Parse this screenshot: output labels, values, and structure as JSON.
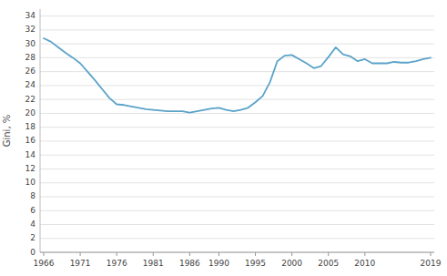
{
  "chart_data": {
    "type": "line",
    "ylabel": "Gini, %",
    "x": [
      1966,
      1967,
      1968,
      1969,
      1970,
      1971,
      1972,
      1973,
      1974,
      1975,
      1976,
      1977,
      1978,
      1979,
      1980,
      1981,
      1982,
      1983,
      1984,
      1985,
      1986,
      1987,
      1988,
      1989,
      1990,
      1991,
      1992,
      1993,
      1994,
      1995,
      1996,
      1997,
      1998,
      1999,
      2000,
      2001,
      2002,
      2003,
      2004,
      2005,
      2006,
      2007,
      2008,
      2009,
      2010,
      2011,
      2012,
      2013,
      2014,
      2015,
      2016,
      2017,
      2018,
      2019
    ],
    "values": [
      30.8,
      30.3,
      29.5,
      28.7,
      28.0,
      27.2,
      26.0,
      24.8,
      23.5,
      22.2,
      21.3,
      21.2,
      21.0,
      20.8,
      20.6,
      20.5,
      20.4,
      20.3,
      20.3,
      20.3,
      20.1,
      20.3,
      20.5,
      20.7,
      20.8,
      20.5,
      20.3,
      20.5,
      20.8,
      21.6,
      22.5,
      24.5,
      27.5,
      28.3,
      28.4,
      27.8,
      27.2,
      26.5,
      26.8,
      28.1,
      29.5,
      28.5,
      28.2,
      27.5,
      27.8,
      27.2,
      27.2,
      27.2,
      27.4,
      27.3,
      27.3,
      27.5,
      27.8,
      28.0
    ],
    "color": "#5ba3c9",
    "xlim": [
      1965.5,
      2019.5
    ],
    "ylim": [
      0,
      35
    ],
    "xticks": [
      1966,
      1971,
      1976,
      1981,
      1986,
      1990,
      1995,
      2000,
      2005,
      2010,
      2019
    ],
    "yticks": [
      0,
      2,
      4,
      6,
      8,
      10,
      12,
      14,
      16,
      18,
      20,
      22,
      24,
      26,
      28,
      30,
      32,
      34
    ],
    "grid": true
  }
}
